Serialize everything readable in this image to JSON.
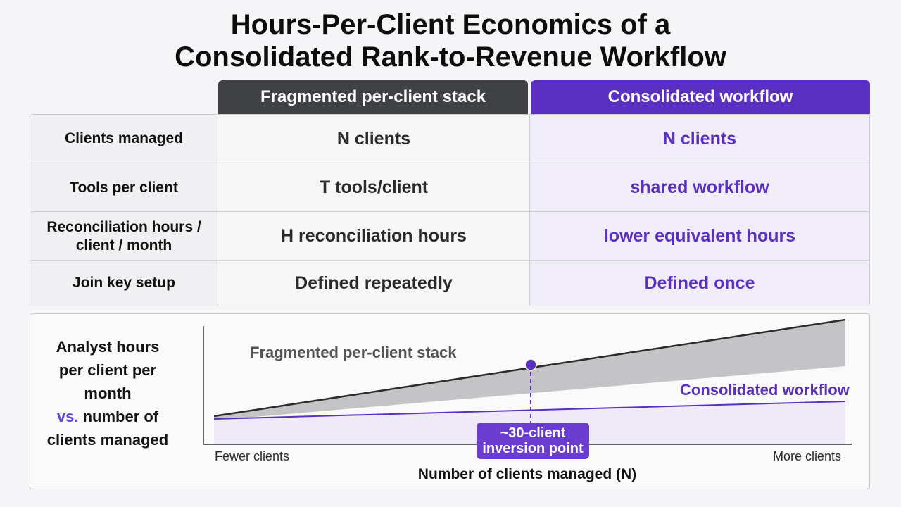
{
  "title": {
    "line1": "Hours-Per-Client Economics of a",
    "line2": "Consolidated Rank-to-Revenue Workflow"
  },
  "table": {
    "headers": {
      "fragmented": "Fragmented per-client stack",
      "consolidated": "Consolidated workflow"
    },
    "rows": [
      {
        "label": "Clients managed",
        "fragmented": "N clients",
        "consolidated": "N clients"
      },
      {
        "label": "Tools per client",
        "fragmented": "T tools/client",
        "consolidated": "shared workflow"
      },
      {
        "label_line1": "Reconciliation hours /",
        "label_line2": "client / month",
        "fragmented": "H reconciliation hours",
        "consolidated": "lower equivalent hours"
      },
      {
        "label": "Join key setup",
        "fragmented": "Defined repeatedly",
        "consolidated": "Defined once"
      }
    ]
  },
  "chart": {
    "ylabel_line1": "Analyst hours",
    "ylabel_line2": "per client per month",
    "ylabel_vs": "vs.",
    "ylabel_line3": "number of",
    "ylabel_line4": "clients managed",
    "xlabel": "Number of clients managed (N)",
    "x_left_label": "Fewer clients",
    "x_right_label": "More clients",
    "series_fragmented_label": "Fragmented per-client stack",
    "series_consolidated_label": "Consolidated workflow",
    "callout_line1": "~30-client",
    "callout_line2": "inversion point"
  },
  "colors": {
    "dark_header": "#3f4145",
    "accent_purple": "#5a2fc2",
    "callout_purple": "#6a3dd0"
  }
}
